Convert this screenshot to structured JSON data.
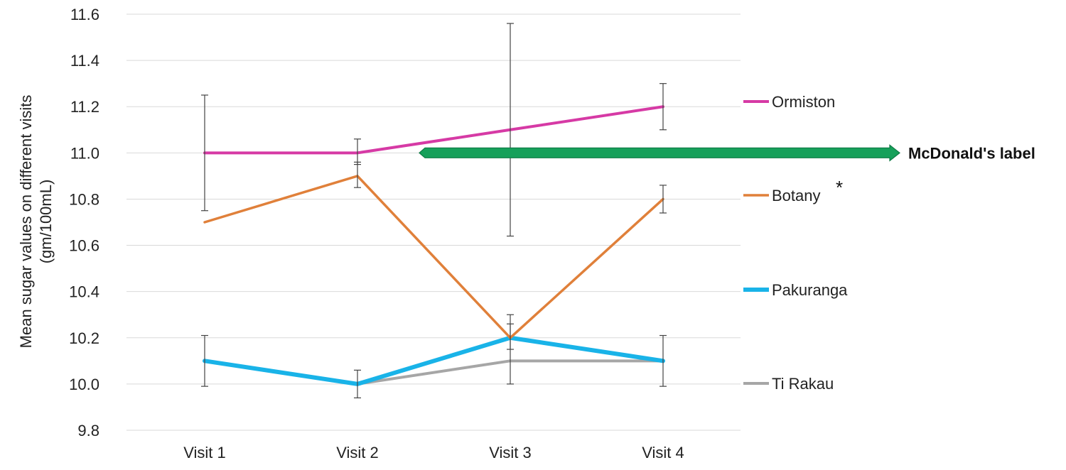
{
  "chart_data": {
    "type": "line",
    "categories": [
      "Visit 1",
      "Visit 2",
      "Visit 3",
      "Visit 4"
    ],
    "ylabel_lines": [
      "Mean sugar values on different visits",
      "(gm/100mL)"
    ],
    "ylim": [
      9.8,
      11.6
    ],
    "yticks": [
      "9.8",
      "10.0",
      "10.2",
      "10.4",
      "10.6",
      "10.8",
      "11.0",
      "11.2",
      "11.4",
      "11.6"
    ],
    "grid": true,
    "legend_position": "right",
    "series": [
      {
        "name": "Ormiston",
        "color": "#d63aa5",
        "values": [
          11.0,
          11.0,
          11.1,
          11.2
        ],
        "error_low": [
          10.75,
          10.95,
          10.64,
          11.1
        ],
        "error_high": [
          11.25,
          11.06,
          11.56,
          11.3
        ],
        "marker": ""
      },
      {
        "name": "Botany",
        "color": "#e0803a",
        "values": [
          10.7,
          10.9,
          10.2,
          10.8
        ],
        "error_low": [
          null,
          10.85,
          10.15,
          10.74
        ],
        "error_high": [
          null,
          10.96,
          10.26,
          10.86
        ],
        "marker": "*"
      },
      {
        "name": "Pakuranga",
        "color": "#19b3e8",
        "values": [
          10.1,
          10.0,
          10.2,
          10.1
        ],
        "error_low": [
          9.99,
          9.94,
          10.0,
          9.99
        ],
        "error_high": [
          10.21,
          10.06,
          10.3,
          10.21
        ],
        "marker": ""
      },
      {
        "name": "Ti Rakau",
        "color": "#a6a6a6",
        "values": [
          10.1,
          10.0,
          10.1,
          10.1
        ],
        "error_low": [
          null,
          null,
          null,
          null
        ],
        "error_high": [
          null,
          null,
          null,
          null
        ],
        "marker": ""
      }
    ],
    "annotation": {
      "label": "McDonald's label",
      "y": 11.0,
      "color": "#16a05a"
    }
  }
}
